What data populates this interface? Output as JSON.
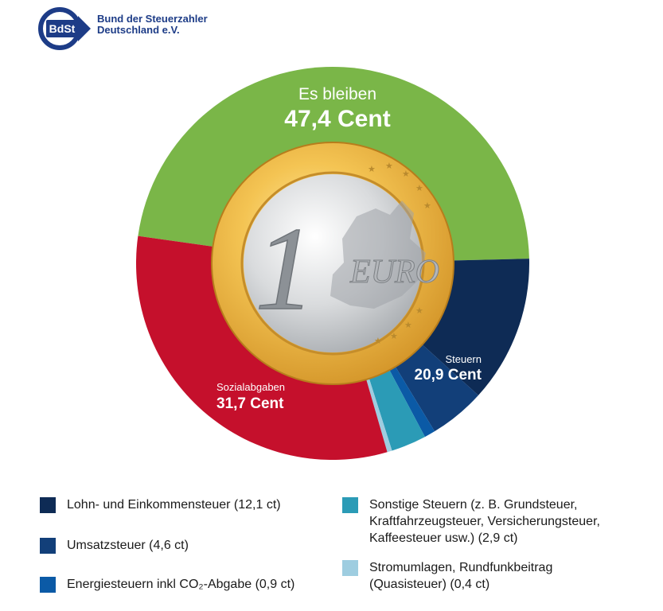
{
  "logo": {
    "badge": "BdSt",
    "line1": "Bund der Steuerzahler",
    "line2": "Deutschland e.V."
  },
  "coin": {
    "numeral": "1",
    "word": "EURO"
  },
  "chart_data": {
    "type": "pie",
    "style": "donut",
    "unit": "Cent",
    "slices": [
      {
        "key": "bleiben",
        "label": "Es bleiben",
        "value": 47.4,
        "value_label": "47,4 Cent",
        "color": "#7ab648"
      },
      {
        "key": "lohn",
        "value": 12.1,
        "color": "#0e2b55"
      },
      {
        "key": "umsatz",
        "value": 4.6,
        "color": "#123f79"
      },
      {
        "key": "energie",
        "value": 0.9,
        "color": "#0b5aa6"
      },
      {
        "key": "sonstige",
        "value": 2.9,
        "color": "#2b9bb6"
      },
      {
        "key": "strom",
        "value": 0.4,
        "color": "#9ecde0"
      },
      {
        "key": "sozial",
        "label": "Sozialabgaben",
        "value": 31.7,
        "value_label": "31,7 Cent",
        "color": "#c5102c"
      }
    ],
    "group_labels": [
      {
        "label": "Steuern",
        "value_label": "20,9 Cent"
      }
    ]
  },
  "legend": [
    {
      "text": "Lohn- und Einkommensteuer (12,1 ct)",
      "color": "#0e2b55"
    },
    {
      "text": "Umsatzsteuer (4,6 ct)",
      "color": "#123f79"
    },
    {
      "text": "Energiesteuern inkl CO₂-Abgabe (0,9 ct)",
      "color": "#0b5aa6"
    },
    {
      "text": "Sonstige Steuern (z. B. Grundsteuer, Kraftfahrzeugsteuer, Versicherungsteuer, Kaffeesteuer usw.) (2,9 ct)",
      "color": "#2b9bb6"
    },
    {
      "text": "Stromumlagen, Rundfunkbeitrag (Quasisteuer) (0,4 ct)",
      "color": "#9ecde0"
    }
  ]
}
